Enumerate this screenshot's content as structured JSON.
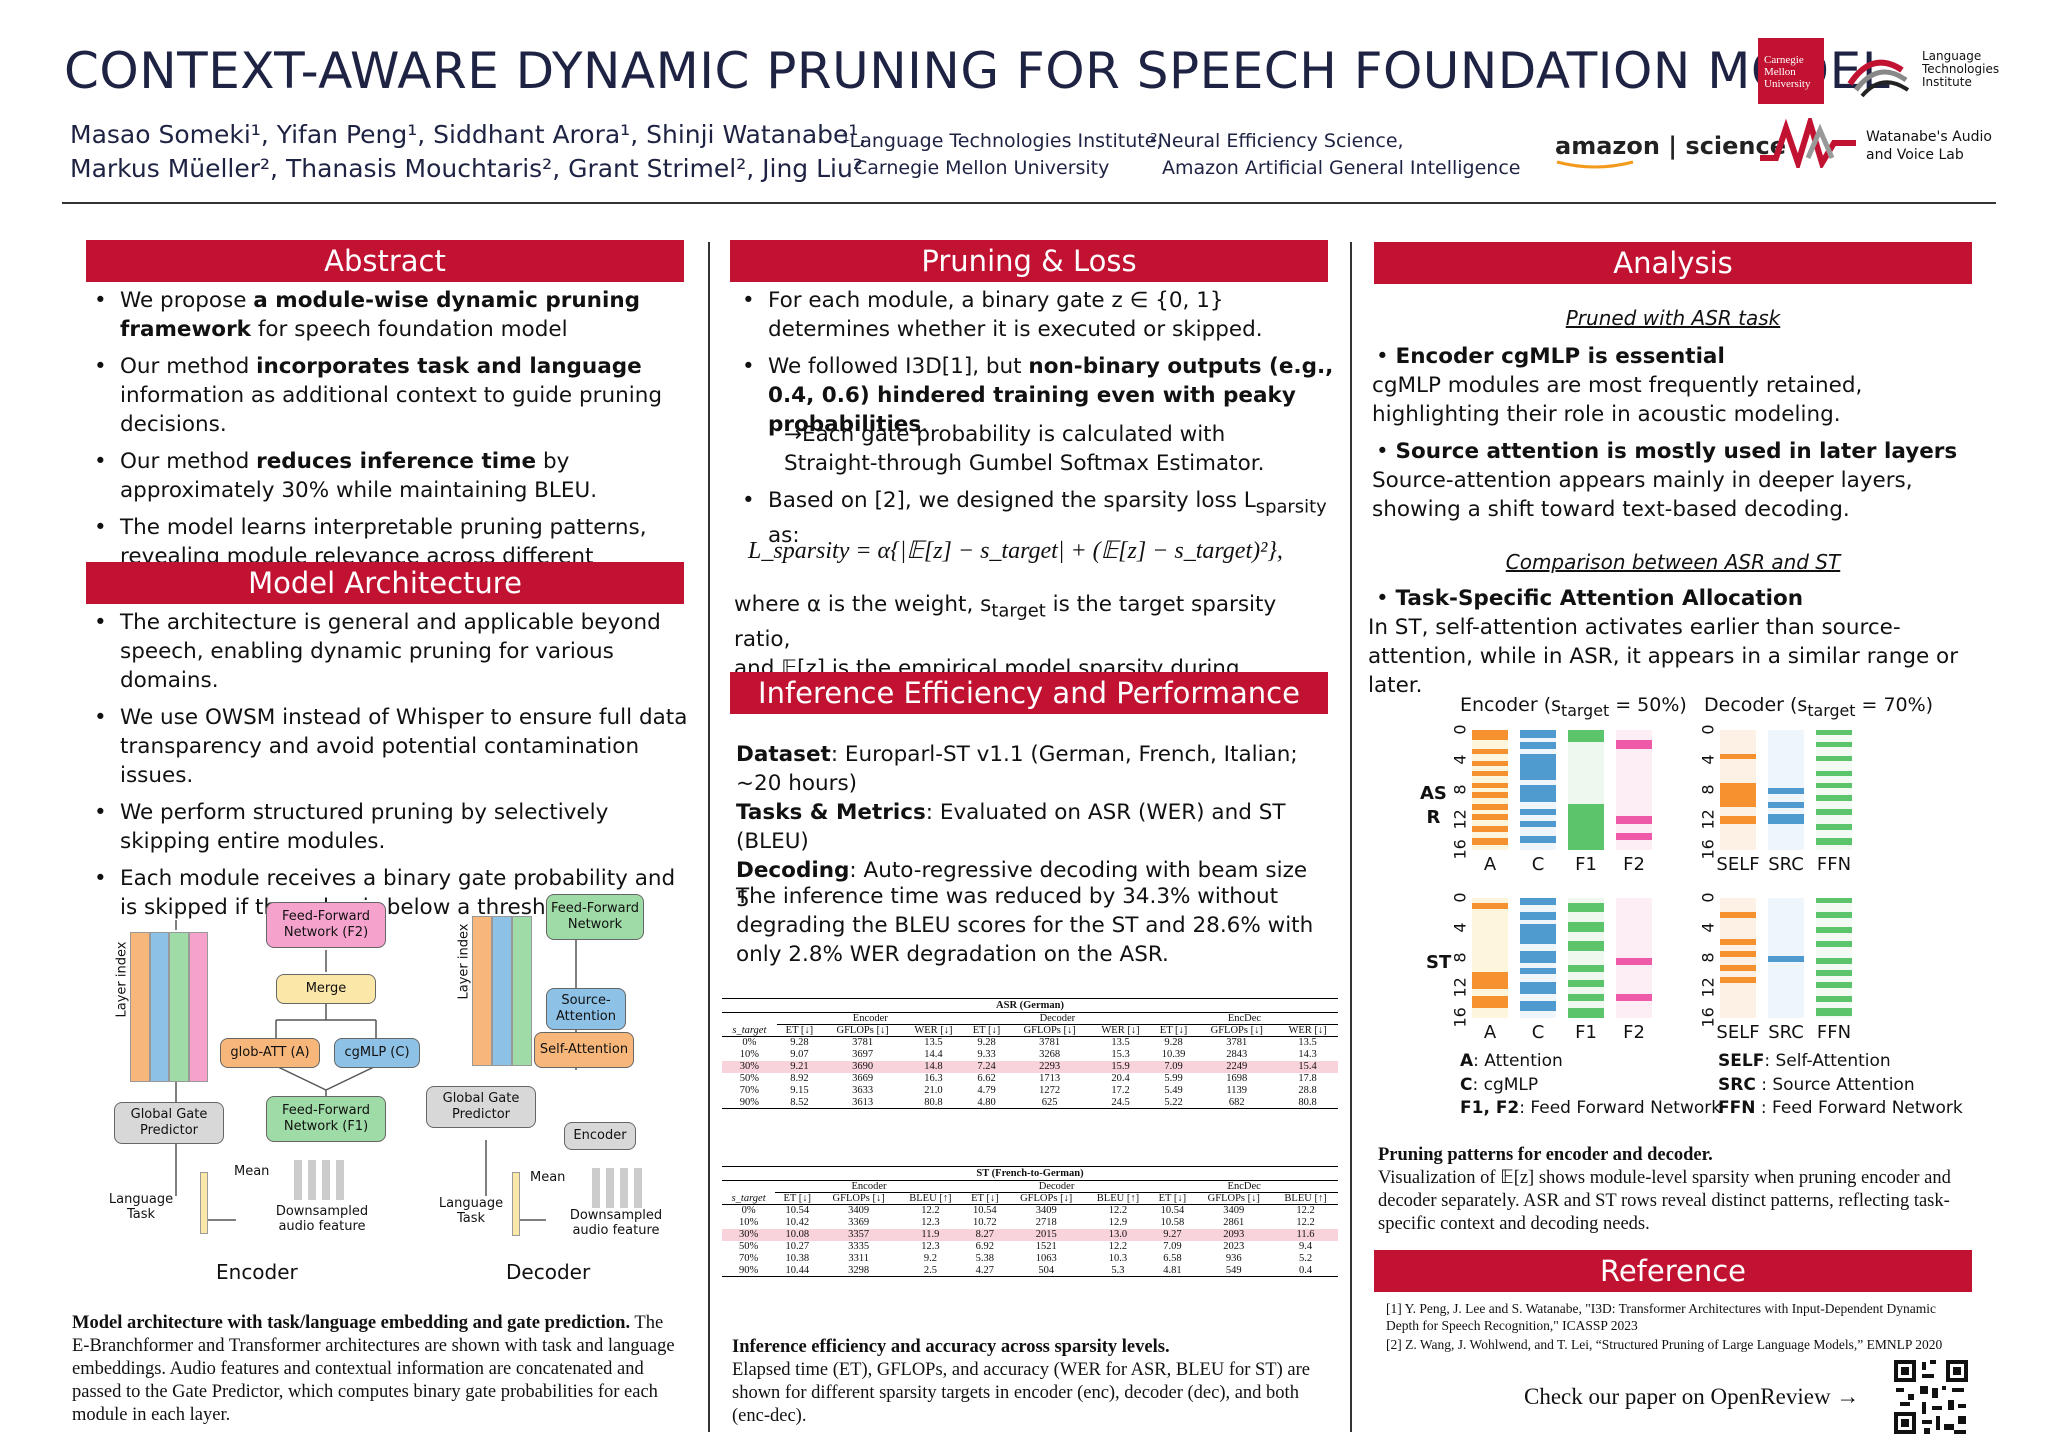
{
  "header": {
    "title": "CONTEXT-AWARE DYNAMIC PRUNING FOR SPEECH FOUNDATION MODEL",
    "authors_line1": "Masao Someki¹, Yifan Peng¹, Siddhant Arora¹, Shinji Watanabe¹,",
    "authors_line2": "Markus Müeller², Thanasis Mouchtaris², Grant Strimel², Jing Liu²",
    "aff1_line1": "¹Language Technologies Institute,",
    "aff1_line2": "Carnegie Mellon University",
    "aff2_line1": "²Neural Efficiency Science,",
    "aff2_line2": "Amazon Artificial General Intelligence",
    "logo_cmu": "Carnegie Mellon University",
    "logo_lti": "Language Technologies Institute",
    "logo_amazon": "amazon | science",
    "logo_wavlab": "Watanabe's Audio and Voice Lab"
  },
  "abstract": {
    "heading": "Abstract",
    "items": [
      {
        "pre": "We propose ",
        "b": "a module-wise dynamic pruning framework",
        "post": " for speech foundation model"
      },
      {
        "pre": "Our method ",
        "b": "incorporates task and language",
        "post": " information as additional context to guide pruning decisions."
      },
      {
        "pre": "Our method ",
        "b": "reduces inference time",
        "post": " by approximately 30% while maintaining BLEU."
      },
      {
        "pre": "",
        "b": "",
        "post": "The model learns interpretable pruning patterns, revealing module relevance across different contexts."
      }
    ]
  },
  "architecture": {
    "heading": "Model Architecture",
    "items": [
      "The architecture is general and applicable beyond speech, enabling dynamic pruning for various domains.",
      "We use OWSM instead of Whisper to ensure full data transparency and avoid potential contamination issues.",
      "We perform structured pruning by selectively skipping entire modules.",
      "Each module receives a binary gate probability and is skipped if the value is below a threshold."
    ],
    "diagram": {
      "enc_ff2": "Feed-Forward Network (F2)",
      "enc_merge": "Merge",
      "enc_att": "glob-ATT (A)",
      "enc_cgmlp": "cgMLP (C)",
      "enc_ff1": "Feed-Forward Network (F1)",
      "gate": "Global Gate Predictor",
      "layer_index": "Layer index",
      "mean": "Mean",
      "lang_task": "Language Task",
      "audio": "Downsampled audio feature",
      "enc_label": "Encoder",
      "dec_ff": "Feed-Forward Network",
      "dec_src": "Source-Attention",
      "dec_self": "Self-Attention",
      "dec_enc": "Encoder",
      "dec_label": "Decoder"
    },
    "caption_bold": "Model architecture with task/language embedding and gate prediction.",
    "caption": "The E-Branchformer and Transformer architectures are shown with task and language embeddings. Audio features and contextual information are concatenated and passed to the Gate Predictor, which computes binary gate probabilities for each module in each layer."
  },
  "pruning": {
    "heading": "Pruning & Loss",
    "item1": "For each module, a binary gate z ∈ {0, 1} determines whether it is executed or skipped.",
    "item2_pre": "We followed I3D[1], but ",
    "item2_b": "non-binary outputs (e.g., 0.4, 0.6) hindered training even with peaky probabilities",
    "item2_post": ".",
    "arrow": "→Each gate probability is calculated with Straight-through Gumbel Softmax Estimator.",
    "item3": "Based on [2], we designed the sparsity loss L",
    "item3_sub": "sparsity",
    "item3_post": " as:",
    "formula": "L_sparsity = α{|𝔼[z] − s_target| + (𝔼[z] − s_target)²},",
    "where1": "where α is the weight, s",
    "where1_sub": "target",
    "where1_post": " is the target sparsity ratio,",
    "where2": "and 𝔼[z] is the empirical model sparsity during training."
  },
  "inference": {
    "heading": "Inference Efficiency and Performance",
    "dataset_b": "Dataset",
    "dataset": ": Europarl-ST v1.1 (German, French, Italian; ~20 hours)",
    "tasks_b": "Tasks & Metrics",
    "tasks": ": Evaluated on ASR (WER) and ST (BLEU)",
    "decoding_b": "Decoding",
    "decoding": ": Auto-regressive decoding with beam size 5",
    "result": "The inference time was reduced by 34.3% without degrading the BLEU scores for the ST and 28.6% with only 2.8% WER degradation on the ASR.",
    "caption_bold": "Inference efficiency and accuracy across sparsity levels.",
    "caption": "Elapsed time (ET), GFLOPs, and accuracy (WER for ASR, BLEU for ST) are shown for different sparsity targets in encoder (enc), decoder (dec), and both (enc-dec)."
  },
  "chart_data": [
    {
      "type": "table",
      "title": "ASR (German)",
      "groups": [
        "Encoder",
        "Decoder",
        "EncDec"
      ],
      "columns": [
        "s_target",
        "ET [↓]",
        "GFLOPs [↓]",
        "WER [↓]",
        "ET [↓]",
        "GFLOPs [↓]",
        "WER [↓]",
        "ET [↓]",
        "GFLOPs [↓]",
        "WER [↓]"
      ],
      "highlight_row": 2,
      "rows": [
        [
          "0%",
          "9.28",
          "3781",
          "13.5",
          "9.28",
          "3781",
          "13.5",
          "9.28",
          "3781",
          "13.5"
        ],
        [
          "10%",
          "9.07",
          "3697",
          "14.4",
          "9.33",
          "3268",
          "15.3",
          "10.39",
          "2843",
          "14.3"
        ],
        [
          "30%",
          "9.21",
          "3690",
          "14.8",
          "7.24",
          "2293",
          "15.9",
          "7.09",
          "2249",
          "15.4"
        ],
        [
          "50%",
          "8.92",
          "3669",
          "16.3",
          "6.62",
          "1713",
          "20.4",
          "5.99",
          "1698",
          "17.8"
        ],
        [
          "70%",
          "9.15",
          "3633",
          "21.0",
          "4.79",
          "1272",
          "17.2",
          "5.49",
          "1139",
          "28.8"
        ],
        [
          "90%",
          "8.52",
          "3613",
          "80.8",
          "4.80",
          "625",
          "24.5",
          "5.22",
          "682",
          "80.8"
        ]
      ]
    },
    {
      "type": "table",
      "title": "ST (French-to-German)",
      "groups": [
        "Encoder",
        "Decoder",
        "EncDec"
      ],
      "columns": [
        "s_target",
        "ET [↓]",
        "GFLOPs [↓]",
        "BLEU [↑]",
        "ET [↓]",
        "GFLOPs [↓]",
        "BLEU [↑]",
        "ET [↓]",
        "GFLOPs [↓]",
        "BLEU [↑]"
      ],
      "highlight_row": 2,
      "rows": [
        [
          "0%",
          "10.54",
          "3409",
          "12.2",
          "10.54",
          "3409",
          "12.2",
          "10.54",
          "3409",
          "12.2"
        ],
        [
          "10%",
          "10.42",
          "3369",
          "12.3",
          "10.72",
          "2718",
          "12.9",
          "10.58",
          "2861",
          "12.2"
        ],
        [
          "30%",
          "10.08",
          "3357",
          "11.9",
          "8.27",
          "2015",
          "13.0",
          "9.27",
          "2093",
          "11.6"
        ],
        [
          "50%",
          "10.27",
          "3335",
          "12.3",
          "6.92",
          "1521",
          "12.2",
          "7.09",
          "2023",
          "9.4"
        ],
        [
          "70%",
          "10.38",
          "3311",
          "9.2",
          "5.38",
          "1063",
          "10.3",
          "6.58",
          "936",
          "5.2"
        ],
        [
          "90%",
          "10.44",
          "3298",
          "2.5",
          "4.27",
          "504",
          "5.3",
          "4.81",
          "549",
          "0.4"
        ]
      ]
    },
    {
      "type": "heatmap",
      "title": "Pruning patterns",
      "rows": [
        "ASR",
        "ST"
      ],
      "encoder_cols": [
        "A",
        "C",
        "F1",
        "F2"
      ],
      "decoder_cols": [
        "SELF",
        "SRC",
        "FFN"
      ],
      "y_ticks": [
        "0",
        "4",
        "8",
        "12",
        "16"
      ],
      "colors": {
        "A": "#f5912f",
        "C": "#4f9bd0",
        "F1": "#5cc46a",
        "F2": "#ee5aa8",
        "SELF": "#f5912f",
        "SRC": "#4f9bd0",
        "FFN": "#5cc46a"
      }
    }
  ],
  "analysis": {
    "heading": "Analysis",
    "sub1": "Pruned with ASR task",
    "b1": "Encoder cgMLP is essential",
    "t1": "cgMLP modules are most frequently retained, highlighting their role in acoustic modeling.",
    "b2": "Source attention is mostly used in later layers",
    "t2": "Source-attention appears mainly in deeper layers, showing a shift toward text-based decoding.",
    "sub2": "Comparison between ASR and ST",
    "b3": "Task-Specific Attention Allocation",
    "t3": "In ST, self-attention activates earlier than source-attention, while in ASR, it appears in a similar range or later.",
    "enc_title": "Encoder (s",
    "enc_title_sub": "target",
    "enc_title_post": " = 50%)",
    "dec_title": "Decoder (s",
    "dec_title_sub": "target",
    "dec_title_post": " = 70%)",
    "row_asr_1": "AS",
    "row_asr_2": "R",
    "row_st": "ST",
    "legend": [
      {
        "k": "A",
        "v": ": Attention"
      },
      {
        "k": "C",
        "v": ": cgMLP"
      },
      {
        "k": "F1, F2",
        "v": ": Feed Forward Network"
      },
      {
        "k": "SELF",
        "v": ": Self-Attention"
      },
      {
        "k": "SRC",
        "v": " : Source Attention"
      },
      {
        "k": "FFN",
        "v": " : Feed Forward Network"
      }
    ],
    "caption_bold": "Pruning patterns for encoder and decoder.",
    "caption": "Visualization of 𝔼[z] shows module-level sparsity when pruning encoder and decoder separately. ASR and ST rows reveal distinct patterns, reflecting task-specific context and decoding needs."
  },
  "reference": {
    "heading": "Reference",
    "r1": "[1] Y. Peng, J. Lee and S. Watanabe, \"I3D: Transformer Architectures with Input-Dependent Dynamic Depth for Speech Recognition,\" ICASSP 2023",
    "r2": "[2] Z. Wang, J. Wohlwend, and T. Lei, “Structured Pruning of Large Language Models,” EMNLP 2020",
    "openreview": "Check our paper on OpenReview →"
  }
}
